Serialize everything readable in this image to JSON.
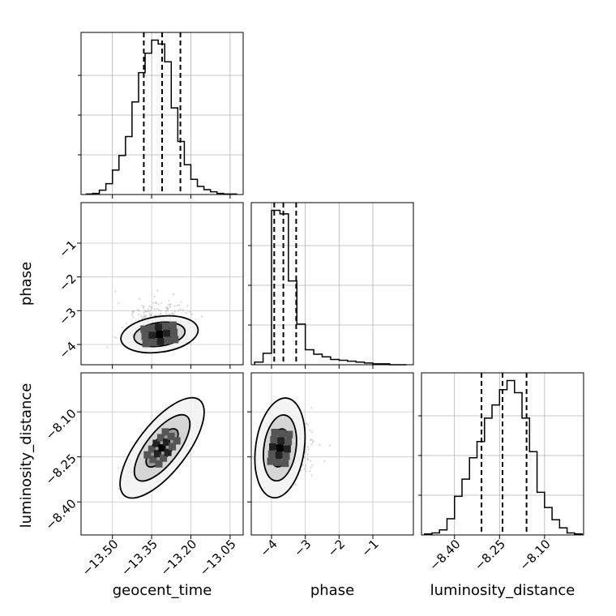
{
  "chart_data": {
    "type": "corner",
    "parameters": [
      "geocent_time",
      "phase",
      "luminosity_distance"
    ],
    "axis_labels": {
      "x": [
        "geocent_time",
        "phase",
        "luminosity_distance"
      ],
      "y_row2": "phase",
      "y_row3": "luminosity_distance"
    },
    "tick_labels": {
      "geocent_time": [
        "−13.50",
        "−13.35",
        "−13.20",
        "−13.05"
      ],
      "phase": [
        "−4",
        "−3",
        "−2",
        "−1"
      ],
      "luminosity_distance": [
        "−8.40",
        "−8.25",
        "−8.10"
      ]
    },
    "ranges": {
      "geocent_time": [
        -13.62,
        -13.0
      ],
      "phase": [
        -4.6,
        0.2
      ],
      "luminosity_distance": [
        -8.51,
        -7.97
      ]
    },
    "ticks": {
      "geocent_time": [
        -13.5,
        -13.35,
        -13.2,
        -13.05
      ],
      "phase": [
        -4,
        -3,
        -2,
        -1
      ],
      "luminosity_distance": [
        -8.4,
        -8.25,
        -8.1
      ]
    },
    "quantiles": {
      "geocent_time": [
        -13.38,
        -13.31,
        -13.24
      ],
      "phase": [
        -3.92,
        -3.65,
        -3.27
      ],
      "luminosity_distance": [
        -8.31,
        -8.24,
        -8.16
      ]
    },
    "histograms": {
      "geocent_time": {
        "bins": [
          -13.6,
          -13.575,
          -13.55,
          -13.525,
          -13.5,
          -13.475,
          -13.45,
          -13.425,
          -13.4,
          -13.375,
          -13.35,
          -13.325,
          -13.3,
          -13.275,
          -13.25,
          -13.225,
          -13.2,
          -13.175,
          -13.15,
          -13.125,
          -13.1,
          -13.075,
          -13.05,
          -13.025
        ],
        "values": [
          1,
          2,
          8,
          20,
          45,
          72,
          107,
          171,
          225,
          261,
          285,
          278,
          245,
          160,
          98,
          55,
          28,
          15,
          9,
          5,
          2,
          1,
          1
        ]
      },
      "phase": {
        "bins": [
          -4.5,
          -4.25,
          -4.0,
          -3.75,
          -3.5,
          -3.25,
          -3.0,
          -2.75,
          -2.5,
          -2.25,
          -2.0,
          -1.75,
          -1.5,
          -1.25,
          -1.0,
          -0.75,
          -0.5,
          -0.25,
          0.0
        ],
        "values": [
          3,
          13,
          175,
          171,
          95,
          46,
          17,
          12,
          9,
          6,
          5,
          4,
          3,
          2,
          1,
          1,
          0,
          0
        ]
      },
      "luminosity_distance": {
        "bins": [
          -8.5,
          -8.475,
          -8.45,
          -8.425,
          -8.4,
          -8.375,
          -8.35,
          -8.325,
          -8.3,
          -8.275,
          -8.25,
          -8.225,
          -8.2,
          -8.175,
          -8.15,
          -8.125,
          -8.1,
          -8.075,
          -8.05,
          -8.025,
          -8.0,
          -7.975
        ],
        "values": [
          1,
          2,
          5,
          16,
          38,
          55,
          76,
          92,
          115,
          128,
          143,
          152,
          140,
          115,
          82,
          42,
          27,
          15,
          7,
          2,
          1
        ]
      }
    },
    "scatter_2d": [
      {
        "x": "geocent_time",
        "y": "phase",
        "center": [
          -13.32,
          -3.7
        ],
        "contour_levels": [
          "outer",
          "middle",
          "inner"
        ]
      },
      {
        "x": "geocent_time",
        "y": "luminosity_distance",
        "center": [
          -13.31,
          -8.22
        ],
        "contour_levels": [
          "outer",
          "middle",
          "inner"
        ]
      },
      {
        "x": "phase",
        "y": "luminosity_distance",
        "center": [
          -3.75,
          -8.22
        ],
        "contour_levels": [
          "outer",
          "middle",
          "inner"
        ]
      }
    ],
    "grid": true,
    "line_color": "#000000",
    "point_color": "#808080"
  }
}
